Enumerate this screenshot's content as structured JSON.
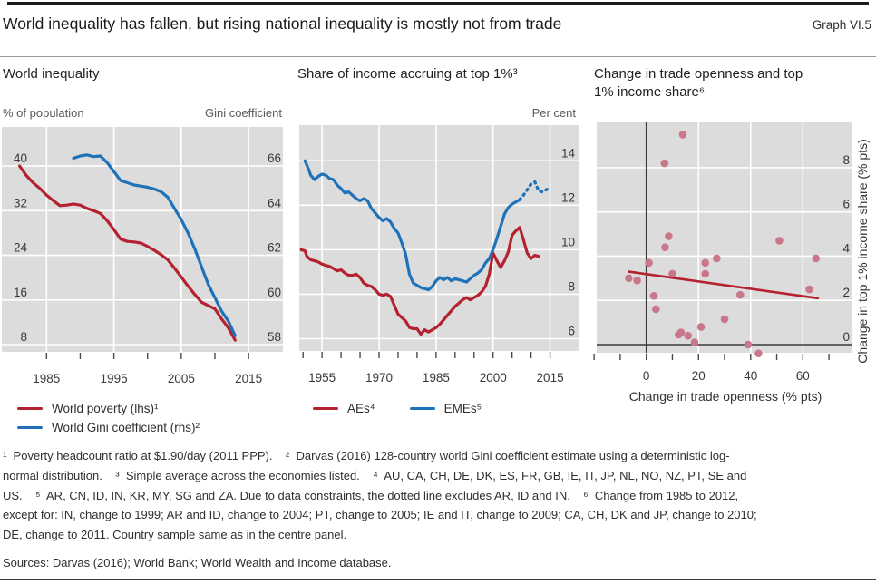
{
  "header": {
    "title": "World inequality has fallen, but rising national inequality is mostly not from trade",
    "graph_label": "Graph VI.5"
  },
  "colors": {
    "red": "#b3222e",
    "blue": "#1f72b7",
    "scatter_dot": "#c9788a",
    "plot_bg": "#dcdcdd",
    "gridline": "#ffffff",
    "axis_dark": "#3a3a3a",
    "tick": "#4a4a4a"
  },
  "panels": {
    "left": {
      "title": "World inequality",
      "left_axis_label": "% of population",
      "right_axis_label": "Gini coefficient",
      "legend": [
        {
          "label": "World poverty (lhs)¹",
          "color": "#b3222e"
        },
        {
          "label": "World Gini coefficient (rhs)²",
          "color": "#1f72b7"
        }
      ]
    },
    "centre": {
      "title": "Share of income accruing at top 1%³",
      "right_axis_label": "Per cent",
      "legend": [
        {
          "label": "AEs⁴",
          "color": "#b3222e"
        },
        {
          "label": "EMEs⁵",
          "color": "#1f72b7"
        }
      ]
    },
    "right": {
      "title_line1": "Change in trade openness and top",
      "title_line2": "1% income share⁶",
      "x_axis_title": "Change in trade openness (% pts)",
      "y_axis_title": "Change in top 1% income share (% pts)"
    }
  },
  "chart_data": [
    {
      "type": "line",
      "panel": "left",
      "title": "World inequality",
      "x_gridlines": [
        1985,
        1995,
        2005,
        2015
      ],
      "x_ticks": [
        1985,
        1990,
        1995,
        2000,
        2005,
        2010,
        2015
      ],
      "x_tick_labels": [
        "1985",
        "1995",
        "2005",
        "2015"
      ],
      "left_axis": {
        "label": "% of population",
        "ticks": [
          8,
          16,
          24,
          32,
          40
        ],
        "range": [
          6.7,
          47.0
        ]
      },
      "right_axis": {
        "label": "Gini coefficient",
        "ticks": [
          58,
          60,
          62,
          64,
          66
        ],
        "range": [
          57.8,
          67.9
        ]
      },
      "series": [
        {
          "name": "World poverty (lhs)",
          "axis": "left",
          "style": "solid",
          "points": [
            [
              1981,
              40.0
            ],
            [
              1982,
              38.3
            ],
            [
              1983,
              37.0
            ],
            [
              1984,
              36.0
            ],
            [
              1985,
              34.8
            ],
            [
              1986,
              33.8
            ],
            [
              1987,
              32.9
            ],
            [
              1988,
              33.0
            ],
            [
              1989,
              33.2
            ],
            [
              1990,
              33.0
            ],
            [
              1991,
              32.4
            ],
            [
              1992,
              32.0
            ],
            [
              1993,
              31.5
            ],
            [
              1994,
              30.2
            ],
            [
              1995,
              28.6
            ],
            [
              1996,
              26.9
            ],
            [
              1997,
              26.5
            ],
            [
              1998,
              26.4
            ],
            [
              1999,
              26.2
            ],
            [
              2000,
              25.6
            ],
            [
              2001,
              24.9
            ],
            [
              2002,
              24.1
            ],
            [
              2003,
              23.2
            ],
            [
              2004,
              21.7
            ],
            [
              2005,
              20.1
            ],
            [
              2006,
              18.5
            ],
            [
              2007,
              17.0
            ],
            [
              2008,
              15.6
            ],
            [
              2009,
              15.0
            ],
            [
              2010,
              14.4
            ],
            [
              2011,
              12.6
            ],
            [
              2012,
              11.0
            ],
            [
              2013,
              8.8
            ]
          ]
        },
        {
          "name": "World Gini coefficient (rhs)",
          "axis": "right",
          "style": "solid",
          "points": [
            [
              1989,
              66.35
            ],
            [
              1990,
              66.45
            ],
            [
              1991,
              66.5
            ],
            [
              1992,
              66.42
            ],
            [
              1993,
              66.45
            ],
            [
              1994,
              66.15
            ],
            [
              1995,
              65.75
            ],
            [
              1996,
              65.35
            ],
            [
              1997,
              65.25
            ],
            [
              1998,
              65.15
            ],
            [
              1999,
              65.1
            ],
            [
              2000,
              65.05
            ],
            [
              2001,
              64.97
            ],
            [
              2002,
              64.85
            ],
            [
              2003,
              64.6
            ],
            [
              2004,
              64.1
            ],
            [
              2005,
              63.6
            ],
            [
              2006,
              63.0
            ],
            [
              2007,
              62.3
            ],
            [
              2008,
              61.5
            ],
            [
              2009,
              60.7
            ],
            [
              2010,
              60.1
            ],
            [
              2011,
              59.5
            ],
            [
              2012,
              59.05
            ],
            [
              2013,
              58.4
            ]
          ]
        }
      ]
    },
    {
      "type": "line",
      "panel": "centre",
      "title": "Share of income accruing at top 1%",
      "x_gridlines": [
        1955,
        1970,
        1985,
        2000,
        2015
      ],
      "x_ticks": [
        1950,
        1955,
        1960,
        1965,
        1970,
        1975,
        1980,
        1985,
        1990,
        1995,
        2000,
        2005,
        2010,
        2015
      ],
      "x_tick_labels": [
        "1955",
        "1970",
        "1985",
        "2000",
        "2015"
      ],
      "right_axis": {
        "label": "Per cent",
        "ticks": [
          6,
          8,
          10,
          12,
          14
        ],
        "range": [
          5.45,
          15.6
        ]
      },
      "series": [
        {
          "name": "AEs",
          "axis": "right",
          "style": "solid",
          "points": [
            [
              1949.5,
              10.0
            ],
            [
              1950.5,
              9.95
            ],
            [
              1951,
              9.7
            ],
            [
              1952,
              9.55
            ],
            [
              1953,
              9.5
            ],
            [
              1954,
              9.45
            ],
            [
              1955,
              9.35
            ],
            [
              1956,
              9.3
            ],
            [
              1957,
              9.25
            ],
            [
              1958,
              9.15
            ],
            [
              1959,
              9.05
            ],
            [
              1960,
              9.1
            ],
            [
              1961,
              8.95
            ],
            [
              1962,
              8.85
            ],
            [
              1963,
              8.85
            ],
            [
              1964,
              8.9
            ],
            [
              1965,
              8.75
            ],
            [
              1966,
              8.5
            ],
            [
              1967,
              8.4
            ],
            [
              1968,
              8.35
            ],
            [
              1969,
              8.2
            ],
            [
              1970,
              8.0
            ],
            [
              1971,
              7.95
            ],
            [
              1972,
              8.0
            ],
            [
              1973,
              7.9
            ],
            [
              1974,
              7.5
            ],
            [
              1975,
              7.1
            ],
            [
              1976,
              6.95
            ],
            [
              1977,
              6.8
            ],
            [
              1978,
              6.5
            ],
            [
              1979,
              6.45
            ],
            [
              1980,
              6.45
            ],
            [
              1981,
              6.2
            ],
            [
              1982,
              6.4
            ],
            [
              1983,
              6.3
            ],
            [
              1984,
              6.4
            ],
            [
              1985,
              6.5
            ],
            [
              1986,
              6.65
            ],
            [
              1987,
              6.85
            ],
            [
              1988,
              7.05
            ],
            [
              1989,
              7.25
            ],
            [
              1990,
              7.45
            ],
            [
              1991,
              7.6
            ],
            [
              1992,
              7.75
            ],
            [
              1993,
              7.85
            ],
            [
              1994,
              7.75
            ],
            [
              1995,
              7.85
            ],
            [
              1996,
              7.95
            ],
            [
              1997,
              8.1
            ],
            [
              1998,
              8.35
            ],
            [
              1999,
              8.9
            ],
            [
              2000,
              9.85
            ],
            [
              2001,
              9.5
            ],
            [
              2002,
              9.2
            ],
            [
              2003,
              9.5
            ],
            [
              2004,
              9.9
            ],
            [
              2005,
              10.65
            ],
            [
              2006,
              10.85
            ],
            [
              2007,
              11.0
            ],
            [
              2008,
              10.45
            ],
            [
              2009,
              9.85
            ],
            [
              2010,
              9.6
            ],
            [
              2011,
              9.75
            ],
            [
              2012,
              9.7
            ]
          ]
        },
        {
          "name": "EMEs",
          "axis": "right",
          "style": "solid",
          "points": [
            [
              1950.5,
              14.0
            ],
            [
              1951.5,
              13.6
            ],
            [
              1952,
              13.35
            ],
            [
              1953,
              13.15
            ],
            [
              1954,
              13.3
            ],
            [
              1955,
              13.4
            ],
            [
              1956,
              13.35
            ],
            [
              1957,
              13.2
            ],
            [
              1958,
              13.15
            ],
            [
              1959,
              12.9
            ],
            [
              1960,
              12.75
            ],
            [
              1961,
              12.55
            ],
            [
              1962,
              12.6
            ],
            [
              1963,
              12.45
            ],
            [
              1964,
              12.3
            ],
            [
              1965,
              12.2
            ],
            [
              1966,
              12.3
            ],
            [
              1967,
              12.2
            ],
            [
              1968,
              11.85
            ],
            [
              1969,
              11.65
            ],
            [
              1970,
              11.45
            ],
            [
              1971,
              11.3
            ],
            [
              1972,
              11.4
            ],
            [
              1973,
              11.25
            ],
            [
              1974,
              10.95
            ],
            [
              1975,
              10.75
            ],
            [
              1976,
              10.3
            ],
            [
              1977,
              9.8
            ],
            [
              1978,
              8.9
            ],
            [
              1979,
              8.5
            ],
            [
              1980,
              8.4
            ],
            [
              1981,
              8.3
            ],
            [
              1982,
              8.25
            ],
            [
              1983,
              8.2
            ],
            [
              1984,
              8.35
            ],
            [
              1985,
              8.6
            ],
            [
              1986,
              8.75
            ],
            [
              1987,
              8.65
            ],
            [
              1988,
              8.75
            ],
            [
              1989,
              8.6
            ],
            [
              1990,
              8.7
            ],
            [
              1991,
              8.65
            ],
            [
              1992,
              8.6
            ],
            [
              1993,
              8.55
            ],
            [
              1994,
              8.7
            ],
            [
              1995,
              8.85
            ],
            [
              1996,
              8.95
            ],
            [
              1997,
              9.1
            ],
            [
              1998,
              9.4
            ],
            [
              1999,
              9.6
            ],
            [
              2000,
              10.0
            ],
            [
              2001,
              10.5
            ],
            [
              2002,
              11.05
            ],
            [
              2003,
              11.6
            ],
            [
              2004,
              11.9
            ],
            [
              2005,
              12.05
            ],
            [
              2006,
              12.15
            ],
            [
              2007,
              12.25
            ]
          ]
        },
        {
          "name": "EMEs (dotted, excl. AR, ID and IN)",
          "axis": "right",
          "style": "dotted",
          "points": [
            [
              2007,
              12.25
            ],
            [
              2008,
              12.45
            ],
            [
              2009,
              12.7
            ],
            [
              2010,
              12.95
            ],
            [
              2011,
              13.05
            ],
            [
              2012,
              12.65
            ],
            [
              2013,
              12.6
            ],
            [
              2014,
              12.7
            ],
            [
              2015,
              12.75
            ]
          ]
        }
      ]
    },
    {
      "type": "scatter",
      "panel": "right",
      "title": "Change in trade openness and top 1% income share",
      "xlabel": "Change in trade openness (% pts)",
      "ylabel": "Change in top 1% income share (% pts)",
      "x_axis": {
        "ticks": [
          -20,
          -10,
          0,
          10,
          20,
          30,
          40,
          50,
          60,
          70
        ],
        "tick_labels": [
          "0",
          "20",
          "40",
          "60"
        ],
        "gridlines": [
          20,
          40,
          60
        ],
        "range": [
          -19,
          79
        ],
        "zero_line": true
      },
      "y_axis": {
        "ticks": [
          0,
          2,
          4,
          6,
          8
        ],
        "gridlines": [
          2,
          4,
          6,
          8
        ],
        "range": [
          -0.37,
          10.05
        ],
        "zero_line": true
      },
      "points": [
        [
          14,
          9.5
        ],
        [
          7,
          8.2
        ],
        [
          8.6,
          4.9
        ],
        [
          7.2,
          4.4
        ],
        [
          51,
          4.7
        ],
        [
          1,
          3.7
        ],
        [
          27,
          3.9
        ],
        [
          22.6,
          3.7
        ],
        [
          65,
          3.9
        ],
        [
          10,
          3.2
        ],
        [
          22.6,
          3.2
        ],
        [
          -6.7,
          3.0
        ],
        [
          -3.5,
          2.9
        ],
        [
          62.5,
          2.5
        ],
        [
          2.9,
          2.2
        ],
        [
          36,
          2.25
        ],
        [
          3.7,
          1.6
        ],
        [
          30,
          1.15
        ],
        [
          21,
          0.8
        ],
        [
          12.4,
          0.45
        ],
        [
          13.3,
          0.55
        ],
        [
          16,
          0.4
        ],
        [
          18.5,
          0.1
        ],
        [
          39,
          0.0
        ],
        [
          43,
          -0.4
        ]
      ],
      "trend_line": {
        "x1": -6.7,
        "y1": 3.3,
        "x2": 65.7,
        "y2": 2.1
      }
    }
  ],
  "footnotes": [
    "¹  Poverty headcount ratio at $1.90/day (2011 PPP).    ²  Darvas (2016) 128-country world Gini coefficient estimate using a deterministic log-",
    "normal distribution.    ³  Simple average across the economies listed.    ⁴  AU, CA, CH, DE, DK, ES, FR, GB, IE, IT, JP, NL, NO, NZ, PT, SE and",
    "US.    ⁵  AR, CN, ID, IN, KR, MY, SG and ZA. Due to data constraints, the dotted line excludes AR, ID and IN.    ⁶  Change from 1985 to 2012,",
    "except for: IN, change to 1999; AR and ID, change to 2004; PT, change to 2005; IE and IT, change to 2009; CA, CH, DK and JP, change to 2010;",
    "DE, change to 2011. Country sample same as in the centre panel."
  ],
  "sources": "Sources: Darvas (2016); World Bank; World Wealth and Income database."
}
